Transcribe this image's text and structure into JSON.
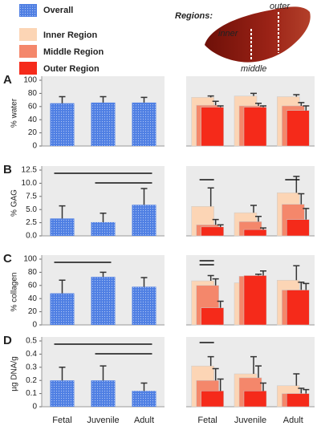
{
  "regions_figure": {
    "title": "Regions:",
    "inner": "inner",
    "middle": "middle",
    "outer": "outer"
  },
  "chart_data": [
    {
      "type": "bar",
      "panel": "A",
      "ylabel": "% water",
      "ylim": [
        0,
        100
      ],
      "yticks": [
        0,
        20,
        40,
        60,
        80,
        100
      ],
      "series": [
        {
          "name": "Overall",
          "color": "#4f7fe3",
          "pattern": "dotted",
          "values": [
            65,
            66,
            66
          ],
          "errors": [
            10,
            9,
            8
          ]
        }
      ],
      "significance": []
    },
    {
      "type": "bar",
      "overlap": true,
      "ylim": [
        0,
        100
      ],
      "series": [
        {
          "name": "Inner Region",
          "color": "#fcd5b5",
          "values": [
            74,
            76,
            75
          ],
          "errors": [
            2,
            4,
            3
          ]
        },
        {
          "name": "Middle Region",
          "color": "#f4876b",
          "values": [
            62,
            61,
            61
          ],
          "errors": [
            6,
            4,
            5
          ]
        },
        {
          "name": "Outer Region",
          "color": "#f52a1a",
          "values": [
            59,
            59,
            54
          ],
          "errors": [
            2,
            2,
            7
          ]
        }
      ],
      "significance": []
    },
    {
      "type": "bar",
      "panel": "B",
      "ylabel": "% GAG",
      "ylim": [
        0,
        12.5
      ],
      "yticks": [
        {
          "value": 0,
          "label": "0.0"
        },
        2.5,
        {
          "value": 5,
          "label": "5.0"
        },
        7.5,
        {
          "value": 10,
          "label": "10.0"
        },
        12.5
      ],
      "series": [
        {
          "name": "Overall",
          "color": "#4f7fe3",
          "pattern": "dotted",
          "values": [
            3.3,
            2.6,
            5.9
          ],
          "errors": [
            2.4,
            1.7,
            3.1
          ]
        }
      ],
      "significance": [
        [
          0,
          2
        ],
        [
          1,
          2
        ]
      ]
    },
    {
      "type": "bar",
      "overlap": true,
      "ylim": [
        0,
        12.5
      ],
      "series": [
        {
          "name": "Inner Region",
          "color": "#fcd5b5",
          "values": [
            5.6,
            4.4,
            8.2
          ],
          "errors": [
            3.5,
            1.4,
            3.1
          ]
        },
        {
          "name": "Middle Region",
          "color": "#f4876b",
          "values": [
            2.1,
            2.7,
            6.0
          ],
          "errors": [
            1.0,
            1.0,
            2.0
          ]
        },
        {
          "name": "Outer Region",
          "color": "#f52a1a",
          "values": [
            1.7,
            1.2,
            3.1
          ],
          "errors": [
            0.4,
            0.3,
            2.1
          ]
        }
      ],
      "significance": [
        0,
        2
      ]
    },
    {
      "type": "bar",
      "panel": "C",
      "ylabel": "% collagen",
      "ylim": [
        0,
        100
      ],
      "yticks": [
        0,
        20,
        40,
        60,
        80,
        100
      ],
      "series": [
        {
          "name": "Overall",
          "color": "#4f7fe3",
          "pattern": "dotted",
          "values": [
            48,
            73,
            58
          ],
          "errors": [
            20,
            7,
            14
          ]
        }
      ],
      "significance": [
        [
          0,
          1
        ]
      ]
    },
    {
      "type": "bar",
      "overlap": true,
      "ylim": [
        0,
        100
      ],
      "series": [
        {
          "name": "Inner Region",
          "color": "#fcd5b5",
          "values": [
            67,
            64,
            68
          ],
          "errors": [
            8,
            8,
            22
          ]
        },
        {
          "name": "Middle Region",
          "color": "#f4876b",
          "values": [
            60,
            74,
            53
          ],
          "errors": [
            10,
            3,
            12
          ]
        },
        {
          "name": "Outer Region",
          "color": "#f52a1a",
          "values": [
            26,
            75,
            53
          ],
          "errors": [
            10,
            7,
            10
          ]
        }
      ],
      "significance": [
        0,
        0
      ]
    },
    {
      "type": "bar",
      "panel": "D",
      "ylabel": "µg DNA/g",
      "ylim": [
        0,
        0.5
      ],
      "yticks": [
        0,
        0.1,
        0.2,
        0.3,
        0.4,
        0.5
      ],
      "categories": [
        "Fetal",
        "Juvenile",
        "Adult"
      ],
      "series": [
        {
          "name": "Overall",
          "color": "#4f7fe3",
          "pattern": "dotted",
          "values": [
            0.2,
            0.2,
            0.12
          ],
          "errors": [
            0.1,
            0.11,
            0.06
          ]
        }
      ],
      "significance": [
        [
          0,
          2
        ],
        [
          1,
          2
        ]
      ]
    },
    {
      "type": "bar",
      "overlap": true,
      "ylim": [
        0,
        0.5
      ],
      "categories": [
        "Fetal",
        "Juvenile",
        "Adult"
      ],
      "series": [
        {
          "name": "Inner Region",
          "color": "#fcd5b5",
          "values": [
            0.31,
            0.25,
            0.16
          ],
          "errors": [
            0.07,
            0.13,
            0.09
          ]
        },
        {
          "name": "Middle Region",
          "color": "#f4876b",
          "values": [
            0.2,
            0.22,
            0.1
          ],
          "errors": [
            0.09,
            0.09,
            0.04
          ]
        },
        {
          "name": "Outer Region",
          "color": "#f52a1a",
          "values": [
            0.12,
            0.12,
            0.1
          ],
          "errors": [
            0.09,
            0.06,
            0.03
          ]
        }
      ],
      "significance": [
        0
      ]
    }
  ]
}
